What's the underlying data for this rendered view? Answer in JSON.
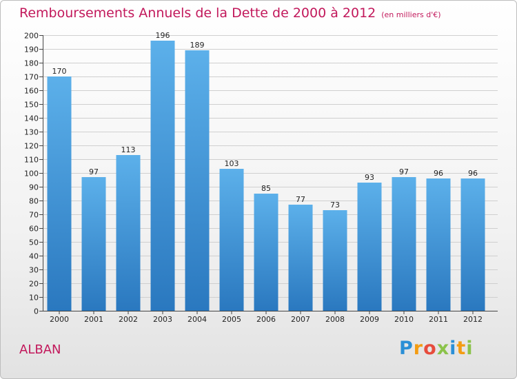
{
  "chart_data": {
    "type": "bar",
    "title": "Remboursements Annuels de la Dette de 2000 à 2012",
    "subtitle": "(en milliers d'€)",
    "xlabel": "",
    "ylabel": "",
    "categories": [
      "2000",
      "2001",
      "2002",
      "2003",
      "2004",
      "2005",
      "2006",
      "2007",
      "2008",
      "2009",
      "2010",
      "2011",
      "2012"
    ],
    "values": [
      170,
      97,
      113,
      196,
      189,
      103,
      85,
      77,
      73,
      93,
      97,
      96,
      96
    ],
    "ylim": [
      0,
      200
    ],
    "yticks": [
      0,
      10,
      20,
      30,
      40,
      50,
      60,
      70,
      80,
      90,
      100,
      110,
      120,
      130,
      140,
      150,
      160,
      170,
      180,
      190,
      200
    ],
    "grid": true,
    "bar_color": "#4a9fe0"
  },
  "footer": {
    "commune": "ALBAN",
    "logo_letters": [
      "P",
      "r",
      "o",
      "x",
      "i",
      "t",
      "i"
    ],
    "logo_colors": [
      "#2a8fd6",
      "#f39c12",
      "#e74c3c",
      "#8bc34a",
      "#2a8fd6",
      "#f39c12",
      "#8bc34a"
    ]
  },
  "colors": {
    "accent": "#c2185b",
    "bar_top": "#5cb0ea",
    "bar_bottom": "#2a78bf"
  }
}
